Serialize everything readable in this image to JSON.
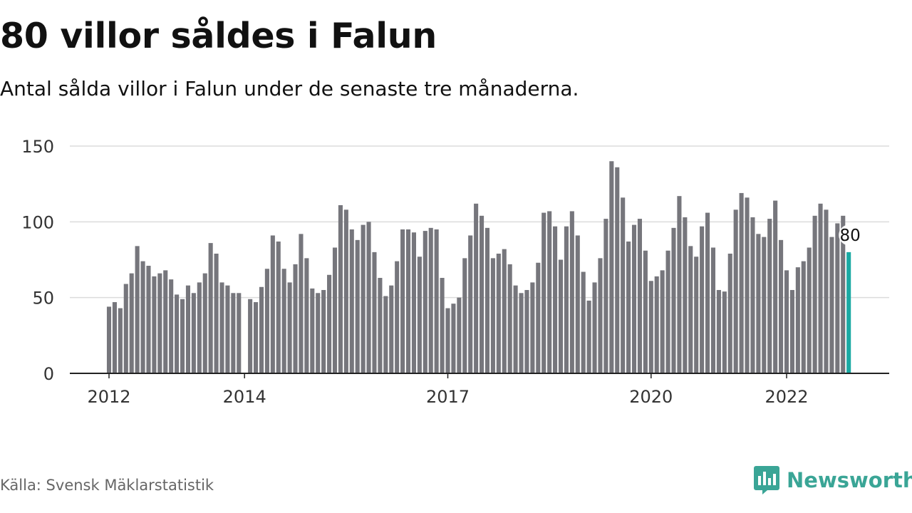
{
  "header": {
    "title": "80 villor såldes i Falun",
    "subtitle": "Antal sålda villor i Falun under de senaste tre månaderna."
  },
  "footer": {
    "source": "Källa: Svensk Mäklarstatistik",
    "brand_name": "Newsworthy",
    "brand_icon": "newsworthy-logo-icon"
  },
  "colors": {
    "bar": "#76767c",
    "highlight": "#1aa9a3",
    "grid": "#dcdcdc",
    "axis": "#222222",
    "brand": "#3aa596"
  },
  "chart_data": {
    "type": "bar",
    "x_start": "2012-01",
    "x_end": "2022-12",
    "x_ticks": [
      "2012",
      "2014",
      "2017",
      "2020",
      "2022"
    ],
    "y_ticks": [
      0,
      50,
      100,
      150
    ],
    "ylim": [
      0,
      150
    ],
    "grid": true,
    "highlight_label": "80",
    "values": [
      44,
      47,
      43,
      59,
      66,
      84,
      74,
      71,
      64,
      66,
      68,
      62,
      52,
      49,
      58,
      53,
      60,
      66,
      86,
      79,
      60,
      58,
      53,
      53,
      null,
      49,
      47,
      57,
      69,
      91,
      87,
      69,
      60,
      72,
      92,
      76,
      56,
      53,
      55,
      65,
      83,
      111,
      108,
      95,
      88,
      98,
      100,
      80,
      63,
      51,
      58,
      74,
      95,
      95,
      93,
      77,
      94,
      96,
      95,
      63,
      43,
      46,
      50,
      76,
      91,
      112,
      104,
      96,
      76,
      79,
      82,
      72,
      58,
      53,
      55,
      60,
      73,
      106,
      107,
      97,
      75,
      97,
      107,
      91,
      67,
      48,
      60,
      76,
      102,
      140,
      136,
      116,
      87,
      98,
      102,
      81,
      61,
      64,
      68,
      81,
      96,
      117,
      103,
      84,
      77,
      97,
      106,
      83,
      55,
      54,
      79,
      108,
      119,
      116,
      103,
      92,
      90,
      102,
      114,
      88,
      68,
      55,
      70,
      74,
      83,
      104,
      112,
      108,
      90,
      99,
      104,
      80
    ]
  }
}
